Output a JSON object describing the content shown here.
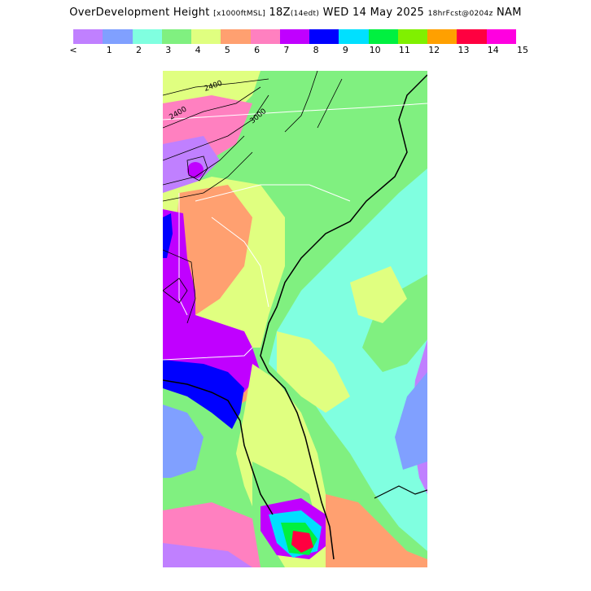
{
  "title": {
    "main": "OverDevelopment Height",
    "units": "[x1000ftMSL]",
    "time": "18Z",
    "local": "(14edt)",
    "date": "WED 14 May 2025",
    "forecast": "18hrFcst@0204z",
    "model": "NAM"
  },
  "legend": {
    "colors": [
      "#c080ff",
      "#80a0ff",
      "#80ffe0",
      "#80f080",
      "#e0ff80",
      "#ffa070",
      "#ff80c0",
      "#c000ff",
      "#0000ff",
      "#00e0ff",
      "#00f040",
      "#80f000",
      "#ffa000",
      "#ff0040",
      "#ff00e0"
    ],
    "labels": [
      "<",
      "1",
      "2",
      "3",
      "4",
      "5",
      "6",
      "7",
      "8",
      "9",
      "10",
      "11",
      "12",
      "13",
      "14",
      "15"
    ]
  },
  "map": {
    "region": "southeastern-us",
    "contour_labels": [
      "2400",
      "3000",
      "2400"
    ]
  }
}
